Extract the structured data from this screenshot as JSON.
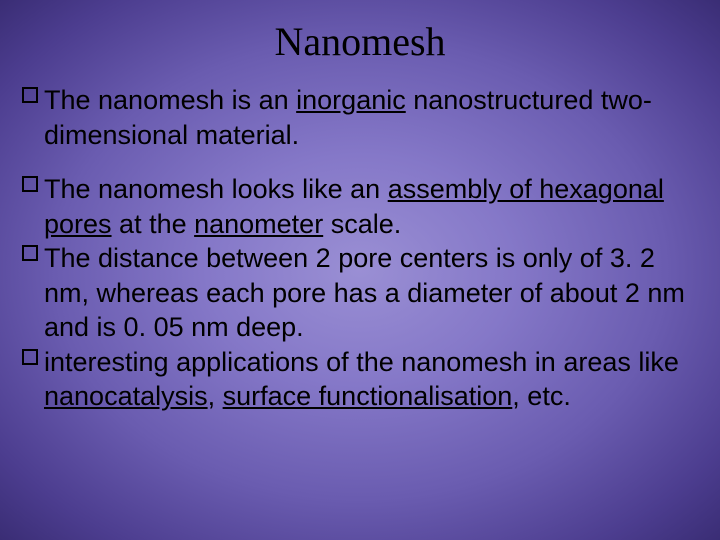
{
  "slide": {
    "title": "Nanomesh",
    "title_fontsize": 40,
    "title_color": "#000000",
    "body_fontsize": 27,
    "body_color": "#000000",
    "background_gradient": {
      "type": "radial",
      "inner_color": "#9a8fd4",
      "mid_color": "#6a5cb0",
      "outer_color": "#3a2d75"
    },
    "bullet_groups": [
      {
        "items": [
          {
            "segments": [
              {
                "text": "The nanomesh is an ",
                "underline": false
              },
              {
                "text": "inorganic",
                "underline": true
              },
              {
                "text": " nanostructured two-dimensional material.",
                "underline": false
              }
            ]
          }
        ]
      },
      {
        "items": [
          {
            "segments": [
              {
                "text": "The nanomesh looks like an ",
                "underline": false
              },
              {
                "text": "assembly of hexagonal pores",
                "underline": true
              },
              {
                "text": " at the ",
                "underline": false
              },
              {
                "text": "nanometer",
                "underline": true
              },
              {
                "text": " scale.",
                "underline": false
              }
            ]
          },
          {
            "segments": [
              {
                "text": "The distance between 2 pore centers is only of 3. 2 nm, whereas each pore has a diameter of about 2 nm and is 0. 05 nm deep.",
                "underline": false
              }
            ]
          },
          {
            "segments": [
              {
                "text": "interesting applications of the nanomesh in areas like ",
                "underline": false
              },
              {
                "text": "nanocatalysis",
                "underline": true
              },
              {
                "text": ", ",
                "underline": false
              },
              {
                "text": "surface functionalisation",
                "underline": true
              },
              {
                "text": ", etc.",
                "underline": false
              }
            ]
          }
        ]
      }
    ]
  }
}
